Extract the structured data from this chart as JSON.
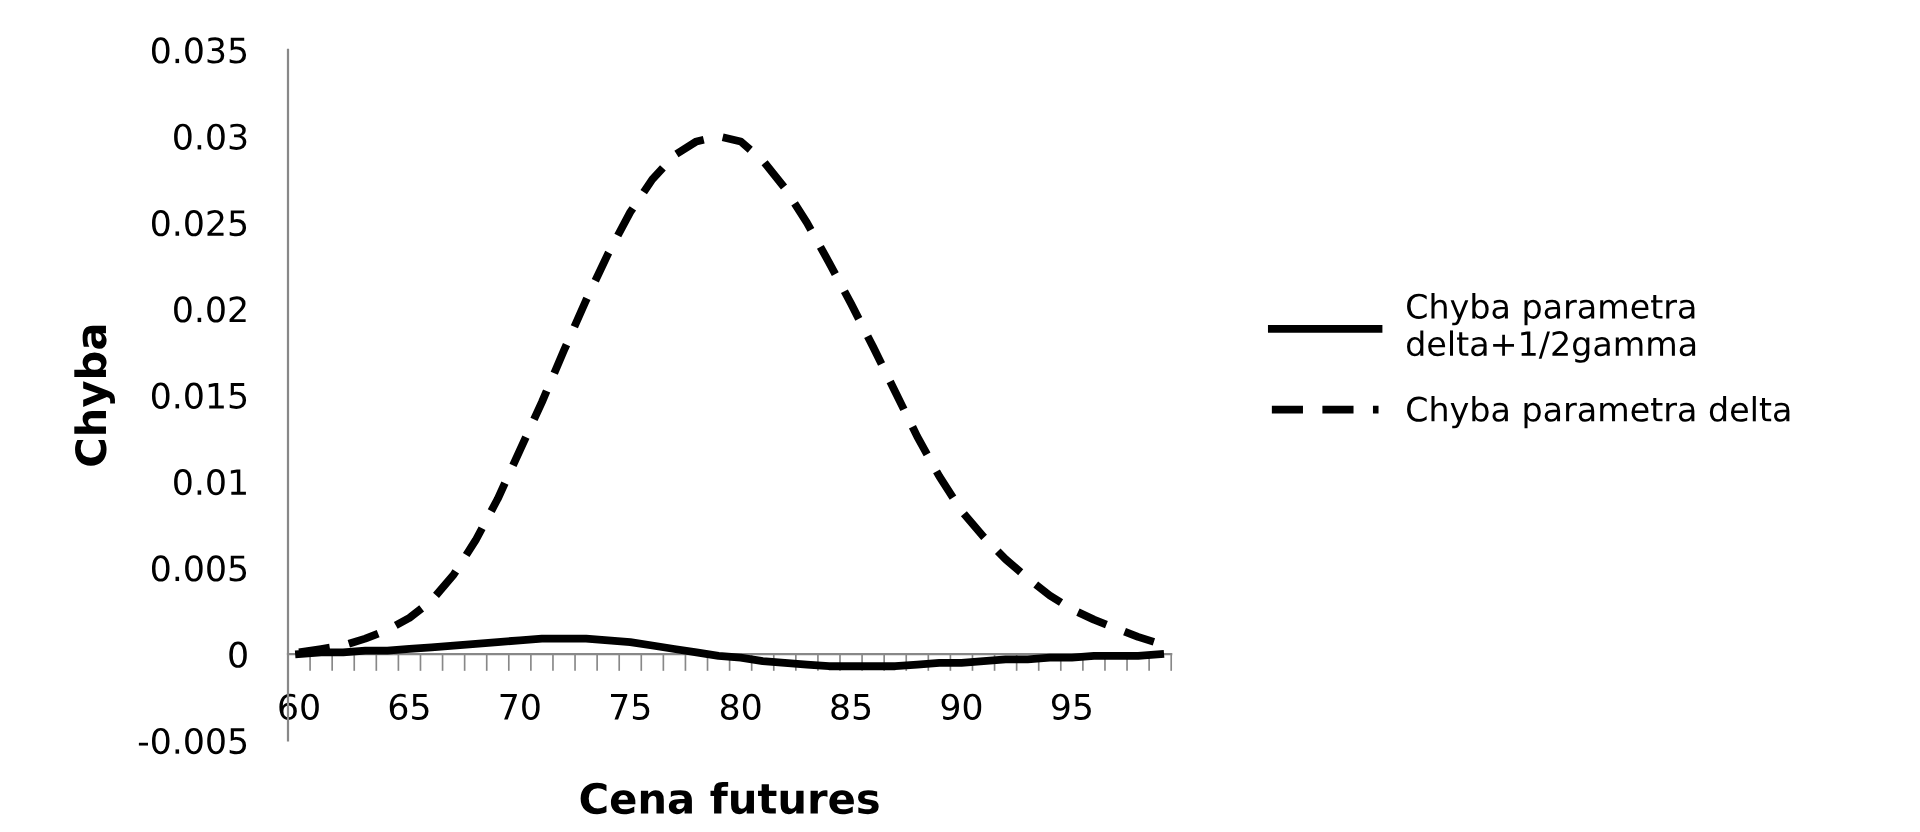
{
  "chart_data": {
    "type": "line",
    "xlabel": "Cena futures",
    "ylabel": "Chyba",
    "categories": [
      "60",
      null,
      null,
      null,
      null,
      "65",
      null,
      null,
      null,
      null,
      "70",
      null,
      null,
      null,
      null,
      "75",
      null,
      null,
      null,
      null,
      "80",
      null,
      null,
      null,
      null,
      "85",
      null,
      null,
      null,
      null,
      "90",
      null,
      null,
      null,
      null,
      "95",
      null,
      null,
      null,
      null
    ],
    "series": [
      {
        "name": "Chyba parametra delta+1/2gamma",
        "color": "#000000",
        "line_style": "solid",
        "values": [
          0.0,
          0.0001,
          0.0001,
          0.0002,
          0.0002,
          0.0003,
          0.0004,
          0.0005,
          0.0006,
          0.0007,
          0.0008,
          0.0009,
          0.0009,
          0.0009,
          0.0008,
          0.0007,
          0.0005,
          0.0003,
          0.0001,
          -0.0001,
          -0.0002,
          -0.0004,
          -0.0005,
          -0.0006,
          -0.0007,
          -0.0007,
          -0.0007,
          -0.0007,
          -0.0006,
          -0.0005,
          -0.0005,
          -0.0004,
          -0.0003,
          -0.0003,
          -0.0002,
          -0.0002,
          -0.0001,
          -0.0001,
          -0.0001,
          0.0
        ]
      },
      {
        "name": "Chyba parametra delta",
        "color": "#000000",
        "line_style": "dashed",
        "values": [
          0.0001,
          0.0003,
          0.0005,
          0.0009,
          0.0014,
          0.0021,
          0.0031,
          0.0046,
          0.0066,
          0.009,
          0.0118,
          0.0146,
          0.0176,
          0.0205,
          0.0232,
          0.0256,
          0.0275,
          0.0289,
          0.0297,
          0.03,
          0.0297,
          0.0286,
          0.027,
          0.025,
          0.0227,
          0.0203,
          0.0178,
          0.0152,
          0.0126,
          0.0103,
          0.0083,
          0.0068,
          0.0055,
          0.0044,
          0.0034,
          0.0026,
          0.002,
          0.0015,
          0.001,
          0.0006
        ]
      }
    ],
    "ylim": [
      -0.005,
      0.035
    ],
    "yticks": [
      -0.005,
      0,
      0.005,
      0.01,
      0.015,
      0.02,
      0.025,
      0.03,
      0.035
    ],
    "grid": false,
    "legend": "right",
    "marker": "none"
  }
}
